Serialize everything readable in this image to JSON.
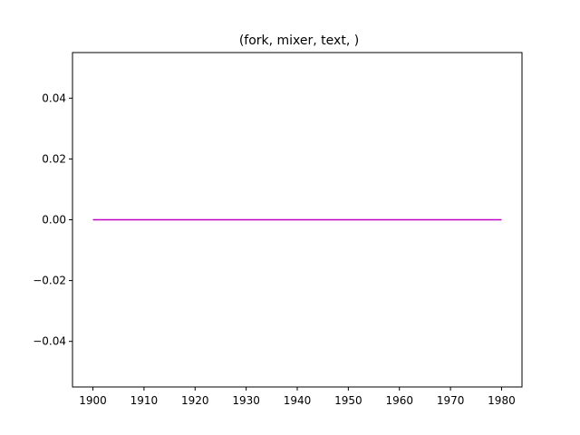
{
  "chart_data": {
    "type": "line",
    "title": "(fork, mixer, text, )",
    "xlabel": "",
    "ylabel": "",
    "xlim": [
      1896,
      1984
    ],
    "ylim": [
      -0.055,
      0.055
    ],
    "xticks": [
      1900,
      1910,
      1920,
      1930,
      1940,
      1950,
      1960,
      1970,
      1980
    ],
    "yticks": [
      -0.04,
      -0.02,
      0.0,
      0.02,
      0.04
    ],
    "ytick_labels": [
      "−0.04",
      "−0.02",
      "0.00",
      "0.02",
      "0.04"
    ],
    "grid": false,
    "legend": "none",
    "series": [
      {
        "color": "#bf00bf",
        "x": [
          1900,
          1980
        ],
        "y": [
          0,
          0
        ]
      }
    ]
  }
}
